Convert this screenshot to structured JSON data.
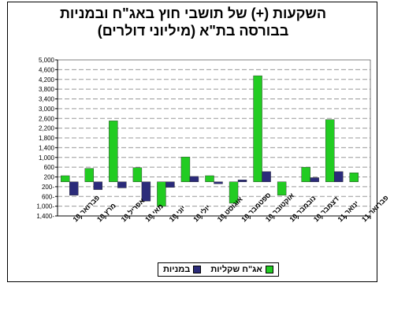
{
  "chart_data": {
    "type": "bar",
    "title": "השקעות (+) של תושבי חוץ באג\"ח ובמניות",
    "subtitle": "בבורסה בת\"א (מיליוני דולרים)",
    "categories": [
      "פברואר 10",
      "מרץ 10",
      "אפריל 10",
      "מאי 10",
      "יוני 10",
      "יולי 10",
      "אוגוסט 10",
      "ספטמבר 10",
      "אוקטובר 10",
      "נובמבר 10",
      "דצמבר 10",
      "ינואר 11",
      "פברואר 11"
    ],
    "series": [
      {
        "name": "אג\"ח שקליות",
        "color": "#22cc22",
        "values": [
          250,
          550,
          2500,
          580,
          -1000,
          1020,
          250,
          -880,
          4350,
          -550,
          600,
          2550,
          370
        ]
      },
      {
        "name": "במניות",
        "color": "#2b2b7a",
        "values": [
          -550,
          -320,
          -250,
          -790,
          -230,
          220,
          -80,
          80,
          420,
          0,
          170,
          420,
          0
        ]
      }
    ],
    "ylim": [
      -1400,
      5000
    ],
    "yticks": [
      -1400,
      -1000,
      -600,
      -200,
      200,
      600,
      1000,
      1400,
      1800,
      2200,
      2600,
      3000,
      3400,
      3800,
      4200,
      4600,
      5000
    ],
    "ytick_labels": [
      "1,400-",
      "1,000-",
      "600-",
      "200-",
      "200",
      "600",
      "1,000",
      "1,400",
      "1,800",
      "2,200",
      "2,600",
      "3,000",
      "3,400",
      "3,800",
      "4,200",
      "4,600",
      "5,000"
    ],
    "grid": true,
    "legend_position": "bottom"
  }
}
